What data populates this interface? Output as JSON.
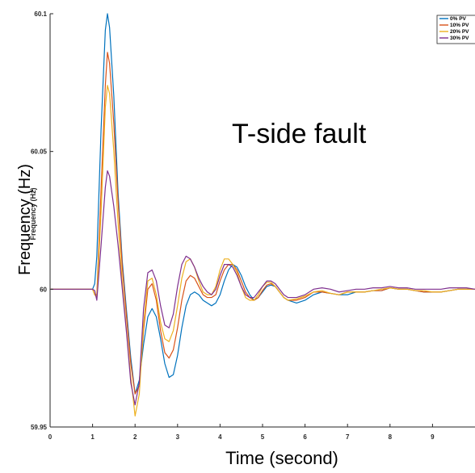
{
  "chart_data": {
    "type": "line",
    "title": "",
    "annotation": "T-side fault",
    "xlabel": "Time (second)",
    "ylabel": "Frequency (Hz)",
    "ylabel_inner": "Frequency (Hz)",
    "xlim": [
      0,
      10
    ],
    "ylim": [
      59.95,
      60.1
    ],
    "x_ticks": [
      "0",
      "1",
      "2",
      "3",
      "4",
      "5",
      "6",
      "7",
      "8",
      "9"
    ],
    "y_ticks": [
      "59.95",
      "60",
      "60.05",
      "60.1"
    ],
    "y_tick_values": [
      59.95,
      60,
      60.05,
      60.1
    ],
    "grid": false,
    "legend_position": "top-right",
    "x": [
      0,
      0.5,
      1.0,
      1.05,
      1.1,
      1.2,
      1.3,
      1.35,
      1.4,
      1.5,
      1.6,
      1.7,
      1.8,
      1.9,
      2.0,
      2.1,
      2.2,
      2.3,
      2.4,
      2.5,
      2.6,
      2.7,
      2.8,
      2.9,
      3.0,
      3.1,
      3.2,
      3.3,
      3.4,
      3.5,
      3.6,
      3.7,
      3.8,
      3.9,
      4.0,
      4.1,
      4.2,
      4.3,
      4.4,
      4.5,
      4.6,
      4.7,
      4.8,
      4.9,
      5.0,
      5.1,
      5.2,
      5.3,
      5.4,
      5.5,
      5.6,
      5.8,
      6.0,
      6.2,
      6.4,
      6.6,
      6.8,
      7.0,
      7.2,
      7.4,
      7.6,
      7.8,
      8.0,
      8.2,
      8.4,
      8.6,
      8.8,
      9.0,
      9.2,
      9.4,
      9.6,
      9.8,
      10.0
    ],
    "series": [
      {
        "name": "0% PV",
        "color": "#0072BD",
        "values": [
          60,
          60,
          60,
          60.002,
          60.012,
          60.058,
          60.094,
          60.1,
          60.095,
          60.07,
          60.035,
          60.01,
          59.992,
          59.975,
          59.962,
          59.967,
          59.98,
          59.99,
          59.993,
          59.99,
          59.982,
          59.973,
          59.968,
          59.969,
          59.976,
          59.986,
          59.994,
          59.998,
          59.999,
          59.998,
          59.996,
          59.995,
          59.994,
          59.995,
          59.998,
          60.003,
          60.007,
          60.009,
          60.008,
          60.005,
          60.001,
          59.998,
          59.996,
          59.997,
          59.999,
          60.001,
          60.0015,
          60.001,
          59.999,
          59.997,
          59.996,
          59.995,
          59.996,
          59.998,
          59.999,
          59.9985,
          59.998,
          59.998,
          59.999,
          59.999,
          59.9995,
          59.9995,
          60.0005,
          60,
          60,
          59.9995,
          59.999,
          59.999,
          59.999,
          59.9995,
          60,
          60,
          60
        ]
      },
      {
        "name": "10% PV",
        "color": "#D95319",
        "values": [
          60,
          60,
          60,
          59.998,
          59.998,
          60.036,
          60.074,
          60.086,
          60.082,
          60.06,
          60.032,
          60.008,
          59.99,
          59.973,
          59.962,
          59.965,
          59.985,
          60.0,
          60.002,
          59.996,
          59.985,
          59.977,
          59.975,
          59.978,
          59.986,
          59.996,
          60.003,
          60.005,
          60.004,
          60.001,
          59.998,
          59.997,
          59.997,
          59.998,
          60.003,
          60.007,
          60.009,
          60.009,
          60.007,
          60.003,
          59.999,
          59.997,
          59.996,
          59.997,
          59.9995,
          60.0015,
          60.002,
          60.001,
          59.999,
          59.997,
          59.996,
          59.996,
          59.997,
          59.999,
          59.999,
          59.9985,
          59.998,
          59.999,
          59.999,
          59.999,
          59.9995,
          59.9995,
          60.0005,
          60,
          60,
          59.9995,
          59.999,
          59.999,
          59.999,
          59.9995,
          60,
          60,
          60
        ]
      },
      {
        "name": "20% PV",
        "color": "#EDB120",
        "values": [
          60,
          60,
          60,
          59.998,
          59.997,
          60.028,
          60.066,
          60.074,
          60.071,
          60.05,
          60.024,
          60.002,
          59.985,
          59.968,
          59.954,
          59.962,
          59.987,
          60.003,
          60.004,
          59.998,
          59.988,
          59.982,
          59.981,
          59.985,
          59.994,
          60.004,
          60.01,
          60.011,
          60.008,
          60.003,
          59.999,
          59.998,
          59.998,
          60.001,
          60.007,
          60.011,
          60.011,
          60.009,
          60.006,
          60.001,
          59.997,
          59.996,
          59.996,
          59.998,
          60.001,
          60.0025,
          60.0025,
          60.001,
          59.999,
          59.997,
          59.996,
          59.9965,
          59.9975,
          59.999,
          59.9995,
          59.9985,
          59.998,
          59.999,
          59.999,
          59.999,
          59.9995,
          60,
          60.0005,
          60,
          60,
          59.9995,
          59.9995,
          59.999,
          59.999,
          59.9995,
          60,
          60,
          60
        ]
      },
      {
        "name": "30% PV",
        "color": "#7E2F8E",
        "values": [
          60,
          60,
          60,
          59.9995,
          59.996,
          60.016,
          60.037,
          60.043,
          60.041,
          60.03,
          60.016,
          60.0,
          59.984,
          59.966,
          59.958,
          59.966,
          59.993,
          60.006,
          60.007,
          60.003,
          59.994,
          59.987,
          59.986,
          59.991,
          60.001,
          60.009,
          60.012,
          60.011,
          60.008,
          60.004,
          60.001,
          59.999,
          59.998,
          60.0,
          60.005,
          60.009,
          60.009,
          60.008,
          60.005,
          60.001,
          59.998,
          59.997,
          59.997,
          59.999,
          60.001,
          60.003,
          60.003,
          60.002,
          60.0,
          59.998,
          59.997,
          59.997,
          59.998,
          60.0,
          60.0005,
          60.0,
          59.999,
          59.9995,
          60.0,
          60.0,
          60.0005,
          60.0005,
          60.001,
          60.0005,
          60.0005,
          60,
          60,
          60,
          60,
          60.0005,
          60.0005,
          60.0005,
          60
        ]
      }
    ]
  }
}
